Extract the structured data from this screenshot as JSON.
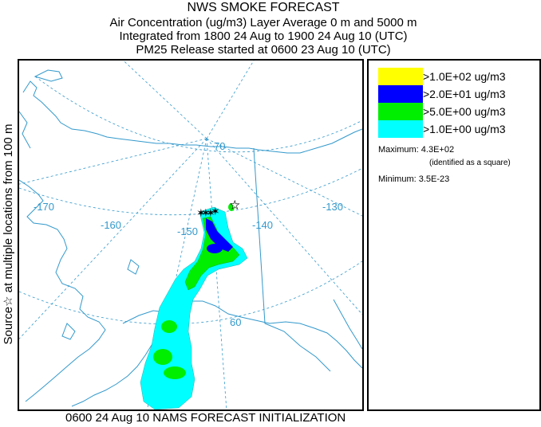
{
  "header": {
    "title": "NWS SMOKE FORECAST",
    "line2": "Air Concentration (ug/m3) Layer Average    0 m and  5000 m",
    "line3": "Integrated from 1800 24 Aug to 1900 24 Aug 10 (UTC)",
    "line4": "PM25 Release started at 0600 23 Aug 10 (UTC)"
  },
  "footer": "0600 24 Aug 10 NAMS FORECAST INITIALIZATION",
  "side_label": {
    "prefix": "Source",
    "star": "☆",
    "text": " at multiple locations    from   100 m"
  },
  "map": {
    "lon_labels": [
      "-170",
      "-160",
      "-150",
      "-140",
      "-130"
    ],
    "lat_labels": [
      "70",
      "60"
    ],
    "colors": {
      "coast": "#3399cc",
      "grid": "#3399cc",
      "border": "#3399cc"
    }
  },
  "legend": {
    "items": [
      {
        "label": ">1.0E+02 ug/m3",
        "color": "#ffff00"
      },
      {
        "label": ">2.0E+01 ug/m3",
        "color": "#0000ff"
      },
      {
        "label": ">5.0E+00 ug/m3",
        "color": "#00ee00"
      },
      {
        "label": ">1.0E+00 ug/m3",
        "color": "#00ffff"
      }
    ],
    "maximum_label": "Maximum:",
    "maximum_value": "4.3E+02",
    "maximum_note": "(identified as a square)",
    "minimum_label": "Minimum:",
    "minimum_value": "3.5E-23"
  }
}
